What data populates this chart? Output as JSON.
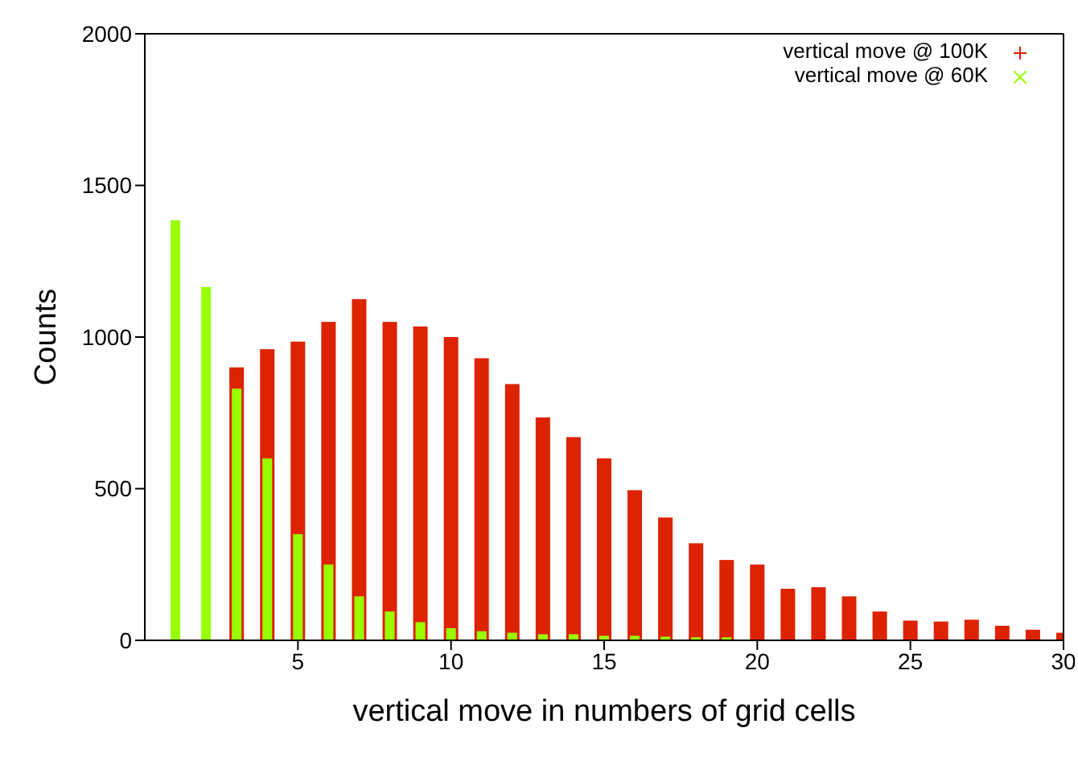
{
  "chart_data": {
    "type": "bar",
    "xlabel": "vertical move in numbers of grid cells",
    "ylabel": "Counts",
    "x": [
      1,
      2,
      3,
      4,
      5,
      6,
      7,
      8,
      9,
      10,
      11,
      12,
      13,
      14,
      15,
      16,
      17,
      18,
      19,
      20,
      21,
      22,
      23,
      24,
      25,
      26,
      27,
      28,
      29,
      30
    ],
    "series": [
      {
        "name": "vertical move @ 100K",
        "color": "#dd2200",
        "values": [
          null,
          null,
          900,
          960,
          985,
          1050,
          1125,
          1050,
          1035,
          1000,
          930,
          845,
          735,
          670,
          600,
          495,
          405,
          320,
          265,
          250,
          170,
          175,
          145,
          95,
          65,
          62,
          68,
          48,
          35,
          25
        ]
      },
      {
        "name": "vertical move @ 60K",
        "color": "#99ff00",
        "values": [
          1385,
          1165,
          830,
          600,
          350,
          250,
          145,
          95,
          60,
          40,
          30,
          25,
          20,
          20,
          15,
          15,
          12,
          10,
          10,
          null,
          null,
          null,
          null,
          null,
          null,
          null,
          null,
          null,
          null,
          null
        ]
      }
    ],
    "xlim": [
      0,
      30
    ],
    "xticks": [
      5,
      10,
      15,
      20,
      25,
      30
    ],
    "ylim": [
      0,
      2000
    ],
    "yticks": [
      0,
      500,
      1000,
      1500,
      2000
    ],
    "legend": "top right",
    "grid": false
  }
}
